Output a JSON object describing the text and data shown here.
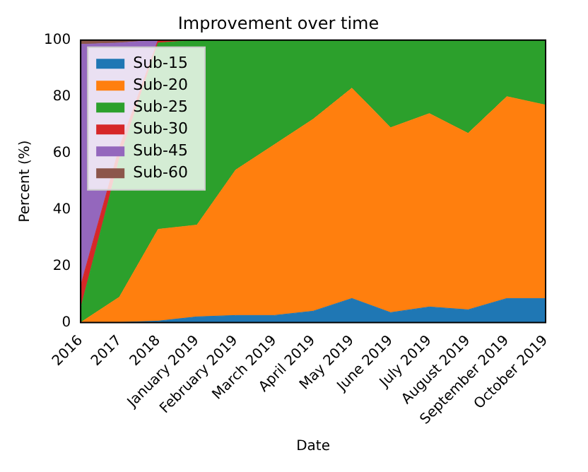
{
  "chart_data": {
    "type": "area",
    "stacked": true,
    "title": "Improvement over time",
    "xlabel": "Date",
    "ylabel": "Percent (%)",
    "categories": [
      "2016",
      "2017",
      "2018",
      "January 2019",
      "February 2019",
      "March 2019",
      "April 2019",
      "May 2019",
      "June 2019",
      "July 2019",
      "August 2019",
      "September 2019",
      "October 2019"
    ],
    "series": [
      {
        "name": "Sub-15",
        "color": "#1f77b4",
        "values": [
          0,
          0,
          0.5,
          2,
          2.5,
          2.5,
          4,
          8.5,
          3.5,
          5.5,
          4.5,
          8.5,
          8.5
        ]
      },
      {
        "name": "Sub-20",
        "color": "#ff7f0e",
        "values": [
          0,
          9,
          32.5,
          32.5,
          51.5,
          60.5,
          68,
          74.5,
          65.5,
          68.5,
          62.5,
          71.5,
          68.5
        ]
      },
      {
        "name": "Sub-25",
        "color": "#2ca02c",
        "values": [
          5,
          49,
          66,
          65.5,
          46,
          37,
          28,
          17,
          31,
          26,
          33,
          20,
          23
        ]
      },
      {
        "name": "Sub-30",
        "color": "#d62728",
        "values": [
          8,
          4,
          1,
          0,
          0,
          0,
          0,
          0,
          0,
          0,
          0,
          0,
          0
        ]
      },
      {
        "name": "Sub-45",
        "color": "#9467bd",
        "values": [
          85.5,
          37,
          0,
          0,
          0,
          0,
          0,
          0,
          0,
          0,
          0,
          0,
          0
        ]
      },
      {
        "name": "Sub-60",
        "color": "#8c564b",
        "values": [
          1.5,
          1,
          0,
          0,
          0,
          0,
          0,
          0,
          0,
          0,
          0,
          0,
          0
        ]
      }
    ],
    "ylim": [
      0,
      100
    ],
    "yticks": [
      0,
      20,
      40,
      60,
      80,
      100
    ],
    "grid": false,
    "legend": "top left",
    "marker": "none"
  }
}
